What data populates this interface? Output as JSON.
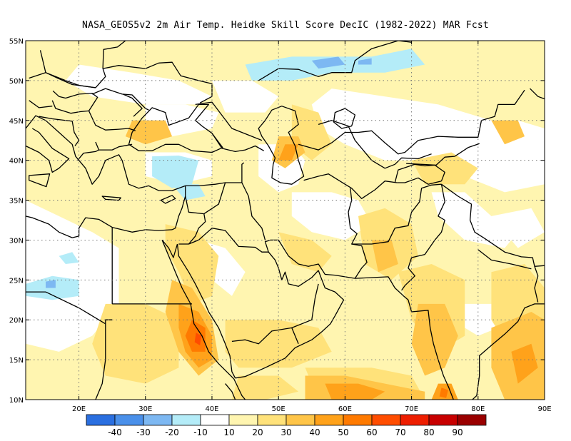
{
  "title": "NASA_GEOS5v2  2m Air Temp. Heidke Skill Score DecIC (1982-2022) MAR Fcst",
  "map": {
    "lon_range": [
      12,
      90
    ],
    "lat_range": [
      10,
      55
    ],
    "lon_ticks": [
      {
        "value": 20,
        "label": "20E"
      },
      {
        "value": 30,
        "label": "30E"
      },
      {
        "value": 40,
        "label": "40E"
      },
      {
        "value": 50,
        "label": "50E"
      },
      {
        "value": 60,
        "label": "60E"
      },
      {
        "value": 70,
        "label": "70E"
      },
      {
        "value": 80,
        "label": "80E"
      },
      {
        "value": 90,
        "label": "90E"
      }
    ],
    "lat_ticks": [
      {
        "value": 10,
        "label": "10N"
      },
      {
        "value": 15,
        "label": "15N"
      },
      {
        "value": 20,
        "label": "20N"
      },
      {
        "value": 25,
        "label": "25N"
      },
      {
        "value": 30,
        "label": "30N"
      },
      {
        "value": 35,
        "label": "35N"
      },
      {
        "value": 40,
        "label": "40N"
      },
      {
        "value": 45,
        "label": "45N"
      },
      {
        "value": 50,
        "label": "50N"
      },
      {
        "value": 55,
        "label": "55N"
      }
    ],
    "grid": "dotted"
  },
  "colorbar": {
    "colors": [
      "#2a6fe0",
      "#4a90ea",
      "#7db8f2",
      "#b4ecf8",
      "#ffffff",
      "#fff5b0",
      "#ffe27a",
      "#ffc548",
      "#ffa21a",
      "#ff7a00",
      "#ff4d00",
      "#ee1e00",
      "#c80000",
      "#9a0000"
    ],
    "labels": [
      "-40",
      "-30",
      "-20",
      "-10",
      "10",
      "20",
      "30",
      "40",
      "50",
      "60",
      "70",
      "80",
      "90"
    ]
  },
  "field_colors": {
    "pale_yellow": "#fff5b0",
    "light_yellow": "#ffe27a",
    "yellow_orange": "#ffc548",
    "orange": "#ffa21a",
    "dark_orange": "#ff7a00",
    "red_orange": "#ff4d00",
    "light_cyan": "#b4ecf8",
    "light_blue": "#7db8f2"
  }
}
